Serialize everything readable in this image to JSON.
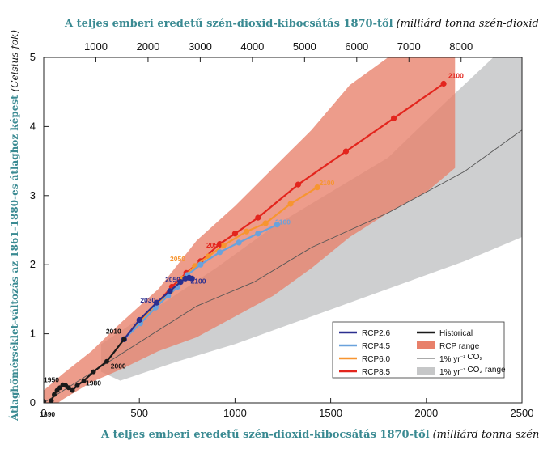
{
  "chart_data": {
    "type": "line",
    "title_top": "A teljes emberi eredetű szén-dioxid-kibocsátás 1870-től",
    "title_top_unit": "(milliárd tonna szén-dioxid)",
    "xlabel": "A teljes emberi eredetű szén-dioxid-kibocsátás 1870-től",
    "xlabel_unit": "(milliárd tonna szén)",
    "ylabel": "Átlaghőmérséklet-változás az 1861-1880-es átlaghoz képest",
    "ylabel_unit": "(Celsius-fok)",
    "xlim": [
      0,
      2500
    ],
    "ylim": [
      0,
      5
    ],
    "x_ticks": [
      "0",
      "500",
      "1000",
      "1500",
      "2000",
      "2500"
    ],
    "y_ticks": [
      "0",
      "1",
      "2",
      "3",
      "4",
      "5"
    ],
    "top_ticks": [
      "1000",
      "2000",
      "3000",
      "4000",
      "5000",
      "6000",
      "7000",
      "8000"
    ],
    "legend_position": "bottom-right",
    "series": [
      {
        "name": "Historical",
        "color": "#1a1a1a",
        "points": [
          [
            0,
            0.02
          ],
          [
            12,
            -0.12
          ],
          [
            25,
            -0.05
          ],
          [
            40,
            0.03
          ],
          [
            55,
            0.12
          ],
          [
            70,
            0.18
          ],
          [
            85,
            0.22
          ],
          [
            100,
            0.26
          ],
          [
            115,
            0.25
          ],
          [
            130,
            0.22
          ],
          [
            150,
            0.18
          ],
          [
            175,
            0.25
          ],
          [
            210,
            0.32
          ],
          [
            260,
            0.45
          ],
          [
            330,
            0.6
          ],
          [
            420,
            0.92
          ]
        ],
        "year_labels": [
          {
            "text": "1890",
            "x": 20,
            "y": -0.2
          },
          {
            "text": "1950",
            "x": 40,
            "y": 0.3
          },
          {
            "text": "1980",
            "x": 260,
            "y": 0.25
          },
          {
            "text": "2000",
            "x": 390,
            "y": 0.5
          },
          {
            "text": "2010",
            "x": 365,
            "y": 1.0
          }
        ]
      },
      {
        "name": "RCP2.6",
        "color": "#2b2f8f",
        "points": [
          [
            420,
            0.92
          ],
          [
            500,
            1.2
          ],
          [
            590,
            1.45
          ],
          [
            660,
            1.62
          ],
          [
            715,
            1.75
          ],
          [
            740,
            1.8
          ],
          [
            760,
            1.81
          ],
          [
            775,
            1.8
          ]
        ],
        "year_labels": [
          {
            "text": "2030",
            "x": 545,
            "y": 1.45
          },
          {
            "text": "2050",
            "x": 675,
            "y": 1.75
          },
          {
            "text": "2100",
            "x": 808,
            "y": 1.73
          }
        ]
      },
      {
        "name": "RCP4.5",
        "color": "#6aa2dc",
        "points": [
          [
            420,
            0.92
          ],
          [
            505,
            1.15
          ],
          [
            585,
            1.38
          ],
          [
            650,
            1.55
          ],
          [
            700,
            1.68
          ],
          [
            750,
            1.85
          ],
          [
            820,
            2.0
          ],
          [
            920,
            2.18
          ],
          [
            1020,
            2.32
          ],
          [
            1120,
            2.45
          ],
          [
            1220,
            2.58
          ]
        ],
        "year_labels": [
          {
            "text": "2100",
            "x": 1250,
            "y": 2.58
          }
        ]
      },
      {
        "name": "RCP6.0",
        "color": "#f79530",
        "points": [
          [
            420,
            0.92
          ],
          [
            505,
            1.17
          ],
          [
            590,
            1.42
          ],
          [
            665,
            1.62
          ],
          [
            725,
            1.8
          ],
          [
            790,
            1.98
          ],
          [
            860,
            2.12
          ],
          [
            940,
            2.28
          ],
          [
            1060,
            2.48
          ],
          [
            1160,
            2.6
          ],
          [
            1290,
            2.88
          ],
          [
            1430,
            3.12
          ]
        ],
        "year_labels": [
          {
            "text": "2050",
            "x": 700,
            "y": 2.05
          },
          {
            "text": "2100",
            "x": 1480,
            "y": 3.15
          }
        ]
      },
      {
        "name": "RCP8.5",
        "color": "#e3251d",
        "points": [
          [
            420,
            0.92
          ],
          [
            505,
            1.2
          ],
          [
            595,
            1.45
          ],
          [
            670,
            1.68
          ],
          [
            745,
            1.88
          ],
          [
            820,
            2.05
          ],
          [
            920,
            2.3
          ],
          [
            1000,
            2.45
          ],
          [
            1120,
            2.68
          ],
          [
            1330,
            3.16
          ],
          [
            1580,
            3.64
          ],
          [
            1830,
            4.12
          ],
          [
            2090,
            4.62
          ]
        ],
        "year_labels": [
          {
            "text": "2050",
            "x": 890,
            "y": 2.25
          },
          {
            "text": "2100",
            "x": 2155,
            "y": 4.7
          }
        ]
      },
      {
        "name": "1% yr⁻¹ CO₂",
        "color": "#555555",
        "points": [
          [
            0,
            0.0
          ],
          [
            200,
            0.35
          ],
          [
            400,
            0.7
          ],
          [
            600,
            1.05
          ],
          [
            800,
            1.4
          ],
          [
            1100,
            1.75
          ],
          [
            1400,
            2.25
          ],
          [
            1800,
            2.75
          ],
          [
            2200,
            3.35
          ],
          [
            2500,
            3.95
          ]
        ],
        "year_labels": []
      }
    ],
    "ranges": [
      {
        "name": "RCP range",
        "color": "#e8806a",
        "upper": [
          [
            0,
            0.18
          ],
          [
            100,
            0.42
          ],
          [
            250,
            0.75
          ],
          [
            400,
            1.15
          ],
          [
            600,
            1.65
          ],
          [
            800,
            2.35
          ],
          [
            1000,
            2.85
          ],
          [
            1200,
            3.4
          ],
          [
            1400,
            3.95
          ],
          [
            1600,
            4.6
          ],
          [
            1800,
            5.0
          ],
          [
            2150,
            5.0
          ]
        ],
        "lower": [
          [
            2150,
            3.4
          ],
          [
            2000,
            3.05
          ],
          [
            1800,
            2.75
          ],
          [
            1600,
            2.4
          ],
          [
            1400,
            1.95
          ],
          [
            1200,
            1.55
          ],
          [
            1000,
            1.25
          ],
          [
            800,
            0.95
          ],
          [
            600,
            0.75
          ],
          [
            400,
            0.48
          ],
          [
            250,
            0.3
          ],
          [
            100,
            0.05
          ],
          [
            0,
            -0.15
          ]
        ]
      },
      {
        "name": "1% yr⁻¹ CO₂ range",
        "color": "#c6c7c8",
        "upper": [
          [
            300,
            0.85
          ],
          [
            600,
            1.4
          ],
          [
            900,
            1.95
          ],
          [
            1200,
            2.55
          ],
          [
            1500,
            3.05
          ],
          [
            1800,
            3.55
          ],
          [
            2100,
            4.35
          ],
          [
            2350,
            5.0
          ],
          [
            2500,
            5.0
          ]
        ],
        "lower": [
          [
            2500,
            2.4
          ],
          [
            2200,
            2.05
          ],
          [
            1900,
            1.75
          ],
          [
            1600,
            1.45
          ],
          [
            1300,
            1.15
          ],
          [
            1000,
            0.85
          ],
          [
            700,
            0.6
          ],
          [
            400,
            0.32
          ],
          [
            300,
            0.45
          ]
        ]
      }
    ],
    "legend": [
      {
        "label": "RCP2.6",
        "kind": "line",
        "color": "#2b2f8f"
      },
      {
        "label": "Historical",
        "kind": "line",
        "color": "#1a1a1a"
      },
      {
        "label": "RCP4.5",
        "kind": "line",
        "color": "#6aa2dc"
      },
      {
        "label": "RCP range",
        "kind": "band",
        "color": "#e8806a"
      },
      {
        "label": "RCP6.0",
        "kind": "line",
        "color": "#f79530"
      },
      {
        "label": "1% yr⁻¹ CO₂",
        "kind": "thin",
        "color": "#555555"
      },
      {
        "label": "RCP8.5",
        "kind": "line",
        "color": "#e3251d"
      },
      {
        "label": "1% yr⁻¹ CO₂ range",
        "kind": "band",
        "color": "#c6c7c8"
      }
    ]
  }
}
